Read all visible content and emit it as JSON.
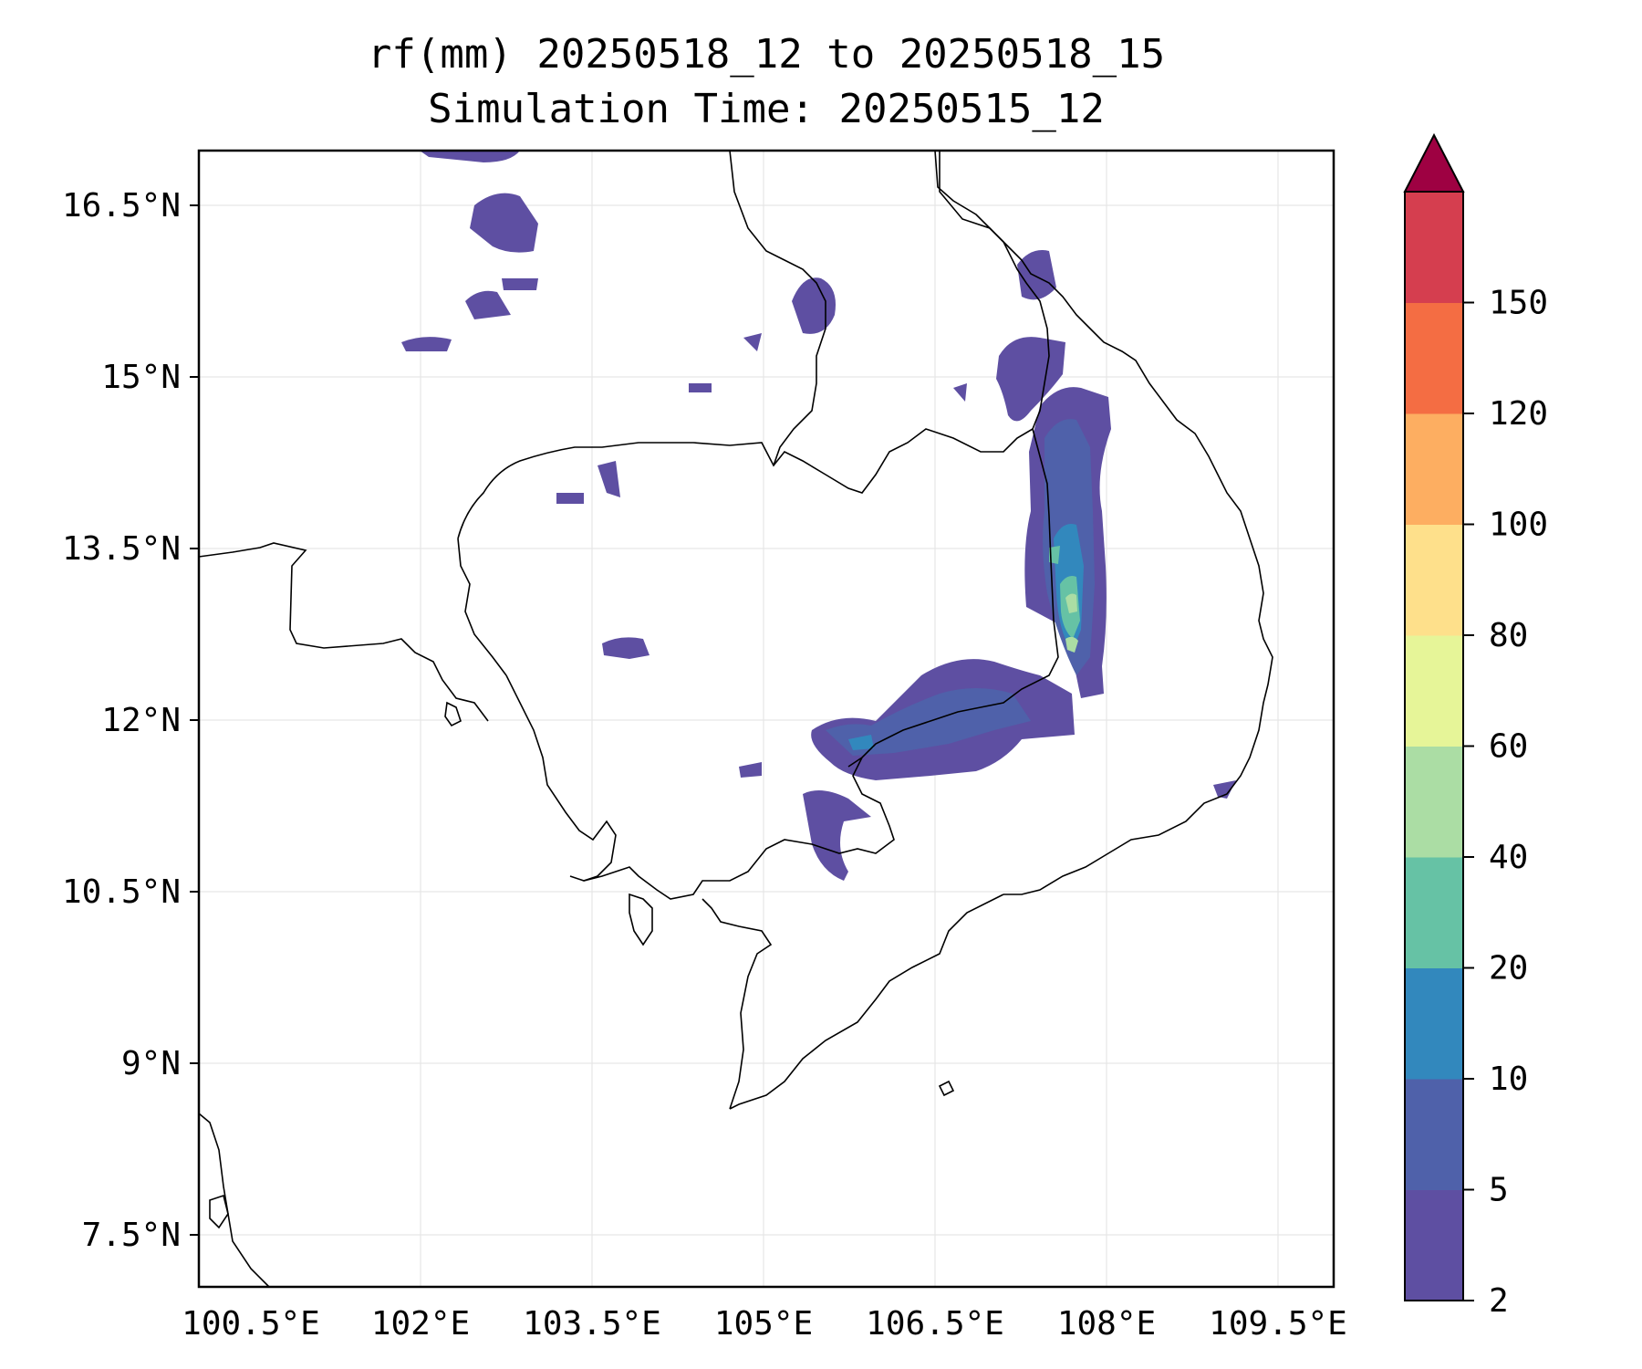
{
  "title": {
    "line1": "rf(mm) 20250518_12 to 20250518_15",
    "line2": "Simulation Time: 20250515_12"
  },
  "map": {
    "extent": {
      "lon_min": 100.5,
      "lon_max": 109.5,
      "lat_min": 7.5,
      "lat_max": 16.5
    },
    "x_ticks": [
      "100.5°E",
      "102°E",
      "103.5°E",
      "105°E",
      "106.5°E",
      "108°E",
      "109.5°E"
    ],
    "y_ticks": [
      "16.5°N",
      "15°N",
      "13.5°N",
      "12°N",
      "10.5°N",
      "9°N",
      "7.5°N"
    ],
    "gridlines": true
  },
  "colorbar": {
    "levels": [
      "2",
      "5",
      "10",
      "20",
      "40",
      "60",
      "80",
      "100",
      "120",
      "150"
    ],
    "colors": [
      "#5e4fa2",
      "#4f61aa",
      "#3288bd",
      "#66c2a5",
      "#abdda4",
      "#e6f598",
      "#fee08b",
      "#fdae61",
      "#f46d43",
      "#d53e4f"
    ],
    "extend_color": "#9e0142",
    "extend": "max"
  }
}
